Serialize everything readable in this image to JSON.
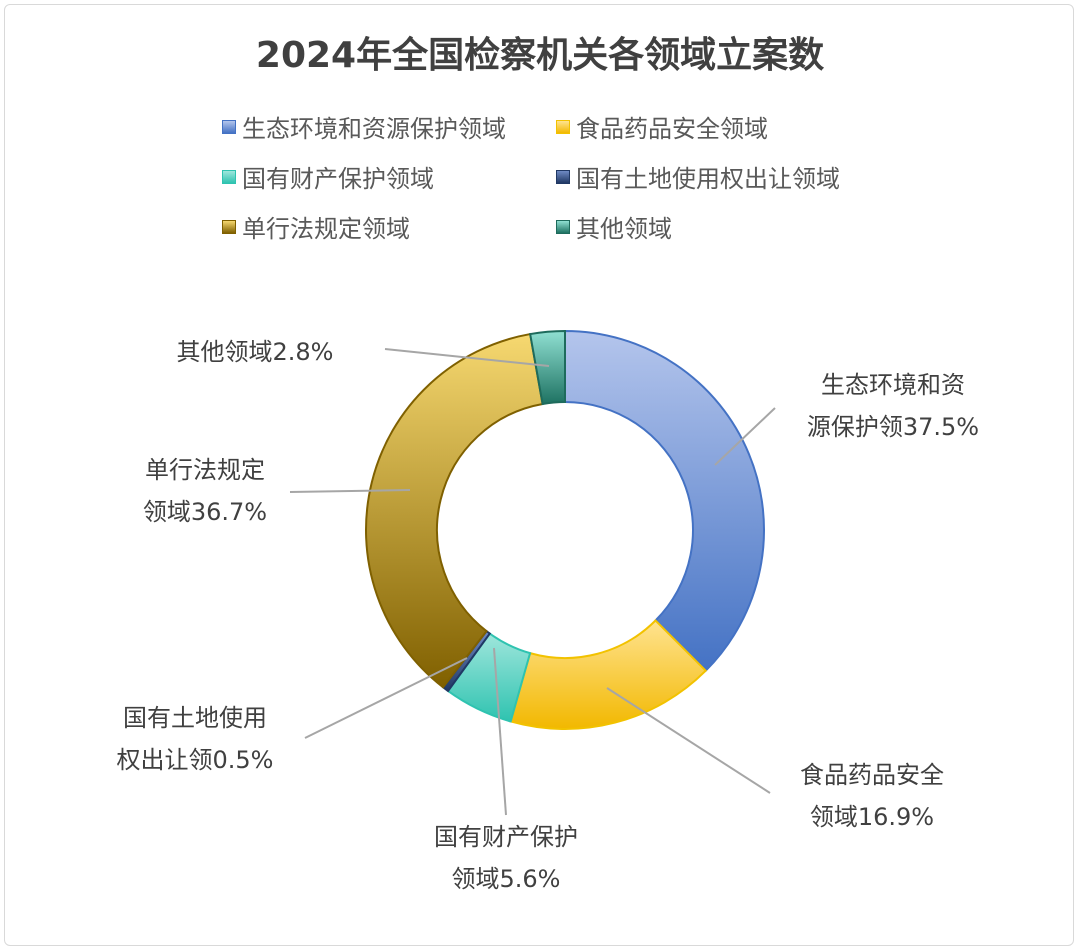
{
  "chart_data": {
    "type": "pie",
    "variant": "donut",
    "title": "2024年全国检察机关各领域立案数",
    "legend_position": "top",
    "slices": [
      {
        "name": "生态环境和资源保护领域",
        "value": 37.5,
        "label_lines": [
          "生态环境和资",
          "源保护领37.5%"
        ],
        "color": "#4472c4",
        "light": "#b4c5ec",
        "stroke": "#4472c4"
      },
      {
        "name": "食品药品安全领域",
        "value": 16.9,
        "label_lines": [
          "食品药品安全",
          "领域16.9%"
        ],
        "color": "#f2b800",
        "light": "#ffe390",
        "stroke": "#f2c200"
      },
      {
        "name": "国有财产保护领域",
        "value": 5.6,
        "label_lines": [
          "国有财产保护",
          "领域5.6%"
        ],
        "color": "#2fc3b0",
        "light": "#9fe6dc",
        "stroke": "#2fc3b0"
      },
      {
        "name": "国有土地使用权出让领域",
        "value": 0.5,
        "label_lines": [
          "国有土地使用",
          "权出让领0.5%"
        ],
        "color": "#203864",
        "light": "#6f8ac4",
        "stroke": "#203864"
      },
      {
        "name": "单行法规定领域",
        "value": 36.7,
        "label_lines": [
          "单行法规定",
          "领域36.7%"
        ],
        "color": "#806000",
        "light": "#f6d870",
        "stroke": "#7f6000"
      },
      {
        "name": "其他领域",
        "value": 2.8,
        "label_lines": [
          "其他领域2.8%"
        ],
        "color": "#1e7262",
        "light": "#90e0d2",
        "stroke": "#1e6b5c"
      }
    ]
  }
}
